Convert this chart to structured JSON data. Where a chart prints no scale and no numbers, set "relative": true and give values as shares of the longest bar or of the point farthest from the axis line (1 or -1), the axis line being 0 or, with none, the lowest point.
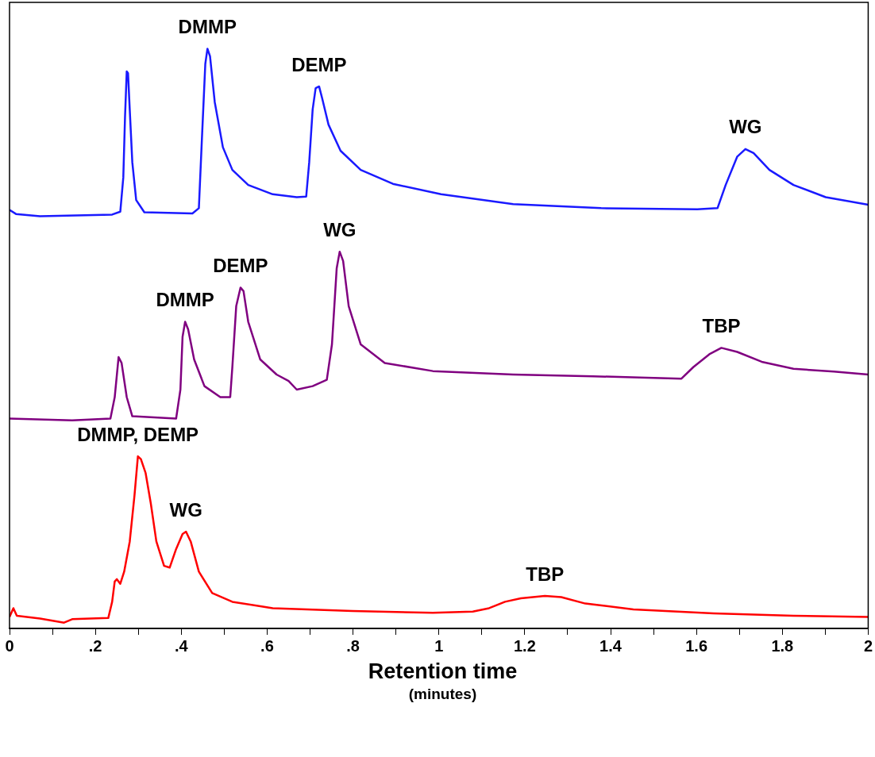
{
  "chart_data": {
    "type": "line",
    "relative": true,
    "xlabel": "Retention time\n(minutes)",
    "xlim": [
      0,
      2
    ],
    "xticks": [
      0,
      {
        "value": 0.1,
        "label": null
      },
      {
        "value": 0.2,
        "label": ".2"
      },
      {
        "value": 0.3,
        "label": null
      },
      {
        "value": 0.4,
        "label": ".4"
      },
      {
        "value": 0.5,
        "label": null
      },
      {
        "value": 0.6,
        "label": ".6"
      },
      {
        "value": 0.7,
        "label": null
      },
      {
        "value": 0.8,
        "label": ".8"
      },
      {
        "value": 0.9,
        "label": null
      },
      1,
      {
        "value": 1.1,
        "label": null
      },
      1.2,
      {
        "value": 1.3,
        "label": null
      },
      1.4,
      {
        "value": 1.5,
        "label": null
      },
      1.6,
      {
        "value": 1.7,
        "label": null
      },
      1.8,
      {
        "value": 1.9,
        "label": null
      },
      2
    ],
    "grid": false,
    "legend": false,
    "marker": "none",
    "line_style": "solid",
    "series": [
      {
        "color": "#1a1aff",
        "x": [
          0,
          0.015,
          0.071,
          0.239,
          0.258,
          0.265,
          0.269,
          0.273,
          0.276,
          0.28,
          0.286,
          0.295,
          0.314,
          0.426,
          0.441,
          0.448,
          0.456,
          0.461,
          0.467,
          0.478,
          0.497,
          0.519,
          0.556,
          0.613,
          0.669,
          0.691,
          0.698,
          0.706,
          0.713,
          0.721,
          0.728,
          0.743,
          0.771,
          0.818,
          0.893,
          1.005,
          1.173,
          1.378,
          1.602,
          1.649,
          1.668,
          1.695,
          1.714,
          1.733,
          1.77,
          1.826,
          1.901,
          2
        ],
        "values": [
          0.722,
          0.715,
          0.711,
          0.714,
          0.719,
          0.778,
          0.882,
          0.961,
          0.958,
          0.895,
          0.804,
          0.739,
          0.718,
          0.716,
          0.725,
          0.843,
          0.974,
          1.0,
          0.987,
          0.908,
          0.83,
          0.791,
          0.765,
          0.749,
          0.744,
          0.745,
          0.804,
          0.895,
          0.932,
          0.935,
          0.915,
          0.869,
          0.824,
          0.791,
          0.767,
          0.749,
          0.732,
          0.725,
          0.723,
          0.725,
          0.765,
          0.814,
          0.827,
          0.82,
          0.791,
          0.765,
          0.744,
          0.731
        ]
      },
      {
        "color": "#800080",
        "x": [
          0,
          0.146,
          0.235,
          0.245,
          0.254,
          0.261,
          0.273,
          0.286,
          0.388,
          0.398,
          0.403,
          0.409,
          0.416,
          0.43,
          0.454,
          0.491,
          0.514,
          0.519,
          0.528,
          0.538,
          0.545,
          0.556,
          0.584,
          0.622,
          0.65,
          0.669,
          0.706,
          0.739,
          0.751,
          0.762,
          0.769,
          0.777,
          0.79,
          0.818,
          0.874,
          0.986,
          1.173,
          1.359,
          1.565,
          1.593,
          1.63,
          1.658,
          1.695,
          1.752,
          1.826,
          1.92,
          2
        ],
        "values": [
          0.362,
          0.359,
          0.362,
          0.399,
          0.468,
          0.458,
          0.399,
          0.366,
          0.362,
          0.412,
          0.503,
          0.529,
          0.516,
          0.464,
          0.418,
          0.399,
          0.399,
          0.451,
          0.556,
          0.588,
          0.582,
          0.529,
          0.464,
          0.438,
          0.427,
          0.412,
          0.418,
          0.429,
          0.49,
          0.621,
          0.65,
          0.634,
          0.556,
          0.49,
          0.458,
          0.444,
          0.438,
          0.435,
          0.431,
          0.451,
          0.473,
          0.484,
          0.477,
          0.46,
          0.448,
          0.443,
          0.438
        ]
      },
      {
        "color": "#ff0000",
        "x": [
          0,
          0.009,
          0.017,
          0.071,
          0.127,
          0.146,
          0.23,
          0.239,
          0.245,
          0.25,
          0.258,
          0.267,
          0.28,
          0.291,
          0.299,
          0.306,
          0.317,
          0.329,
          0.342,
          0.36,
          0.373,
          0.388,
          0.403,
          0.411,
          0.422,
          0.441,
          0.472,
          0.519,
          0.613,
          0.799,
          0.986,
          1.079,
          1.117,
          1.154,
          1.191,
          1.247,
          1.285,
          1.341,
          1.453,
          1.64,
          1.826,
          2
        ],
        "values": [
          0.02,
          0.035,
          0.022,
          0.017,
          0.01,
          0.016,
          0.018,
          0.046,
          0.081,
          0.085,
          0.077,
          0.098,
          0.15,
          0.229,
          0.297,
          0.292,
          0.268,
          0.216,
          0.15,
          0.108,
          0.105,
          0.137,
          0.163,
          0.167,
          0.15,
          0.098,
          0.061,
          0.046,
          0.035,
          0.03,
          0.027,
          0.029,
          0.035,
          0.046,
          0.052,
          0.056,
          0.054,
          0.043,
          0.033,
          0.026,
          0.022,
          0.02
        ]
      }
    ],
    "annotations": [
      {
        "text": "DMMP",
        "x": 0.461,
        "y": 1.0
      },
      {
        "text": "DEMP",
        "x": 0.721,
        "y": 0.935
      },
      {
        "text": "WG",
        "x": 1.714,
        "y": 0.827
      },
      {
        "text": "DMMP",
        "x": 0.409,
        "y": 0.529
      },
      {
        "text": "DEMP",
        "x": 0.538,
        "y": 0.588
      },
      {
        "text": "WG",
        "x": 0.769,
        "y": 0.65
      },
      {
        "text": "TBP",
        "x": 1.658,
        "y": 0.484
      },
      {
        "text": "DMMP, DEMP",
        "x": 0.299,
        "y": 0.297
      },
      {
        "text": "WG",
        "x": 0.411,
        "y": 0.167
      },
      {
        "text": "TBP",
        "x": 1.247,
        "y": 0.056
      }
    ]
  }
}
